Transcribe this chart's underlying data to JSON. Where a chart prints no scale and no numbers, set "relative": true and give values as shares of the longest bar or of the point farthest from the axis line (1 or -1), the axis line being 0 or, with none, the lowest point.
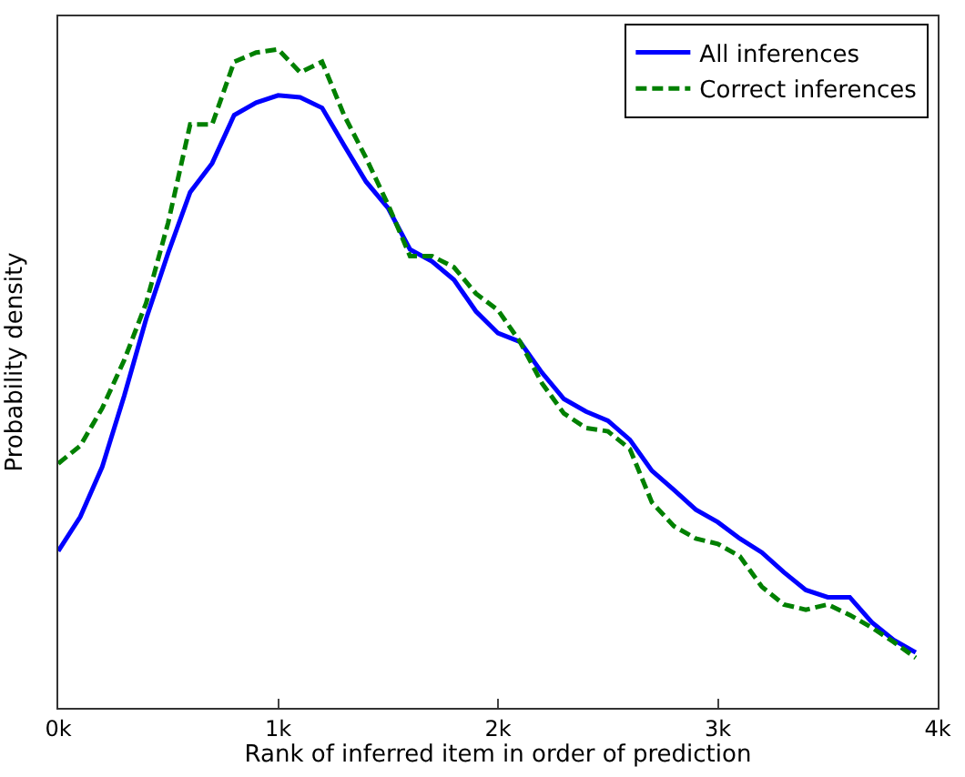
{
  "chart_data": {
    "type": "line",
    "relative": true,
    "xlabel": "Rank of inferred item in order of prediction",
    "ylabel": "Probability density",
    "x": [
      0,
      0.1,
      0.2,
      0.3,
      0.4,
      0.5,
      0.6,
      0.7,
      0.8,
      0.9,
      1.0,
      1.1,
      1.2,
      1.3,
      1.4,
      1.5,
      1.6,
      1.7,
      1.8,
      1.9,
      2.0,
      2.1,
      2.2,
      2.3,
      2.4,
      2.5,
      2.6,
      2.7,
      2.8,
      2.9,
      3.0,
      3.1,
      3.2,
      3.3,
      3.4,
      3.5,
      3.6,
      3.7,
      3.8,
      3.9
    ],
    "xlim": [
      0,
      4
    ],
    "xticks": [
      {
        "value": 0,
        "label": "0k"
      },
      {
        "value": 1,
        "label": "1k"
      },
      {
        "value": 2,
        "label": "2k"
      },
      {
        "value": 3,
        "label": "3k"
      },
      {
        "value": 4,
        "label": "4k"
      }
    ],
    "legend": "top right",
    "marker": "none",
    "series": [
      {
        "name": "All inferences",
        "color": "#0000ff",
        "line_style": "solid",
        "values": [
          0.238,
          0.29,
          0.366,
          0.474,
          0.591,
          0.691,
          0.783,
          0.827,
          0.9,
          0.919,
          0.93,
          0.927,
          0.911,
          0.854,
          0.799,
          0.759,
          0.696,
          0.678,
          0.65,
          0.602,
          0.569,
          0.556,
          0.509,
          0.469,
          0.45,
          0.436,
          0.407,
          0.36,
          0.331,
          0.301,
          0.282,
          0.257,
          0.236,
          0.206,
          0.179,
          0.168,
          0.168,
          0.13,
          0.103,
          0.084
        ]
      },
      {
        "name": "Correct inferences",
        "color": "#008000",
        "line_style": "dashed",
        "values": [
          0.371,
          0.398,
          0.455,
          0.528,
          0.615,
          0.737,
          0.886,
          0.886,
          0.981,
          0.995,
          1.0,
          0.965,
          0.981,
          0.9,
          0.835,
          0.764,
          0.686,
          0.686,
          0.669,
          0.629,
          0.604,
          0.556,
          0.493,
          0.447,
          0.425,
          0.42,
          0.393,
          0.312,
          0.276,
          0.257,
          0.249,
          0.23,
          0.184,
          0.157,
          0.149,
          0.157,
          0.141,
          0.122,
          0.1,
          0.076
        ]
      }
    ]
  }
}
